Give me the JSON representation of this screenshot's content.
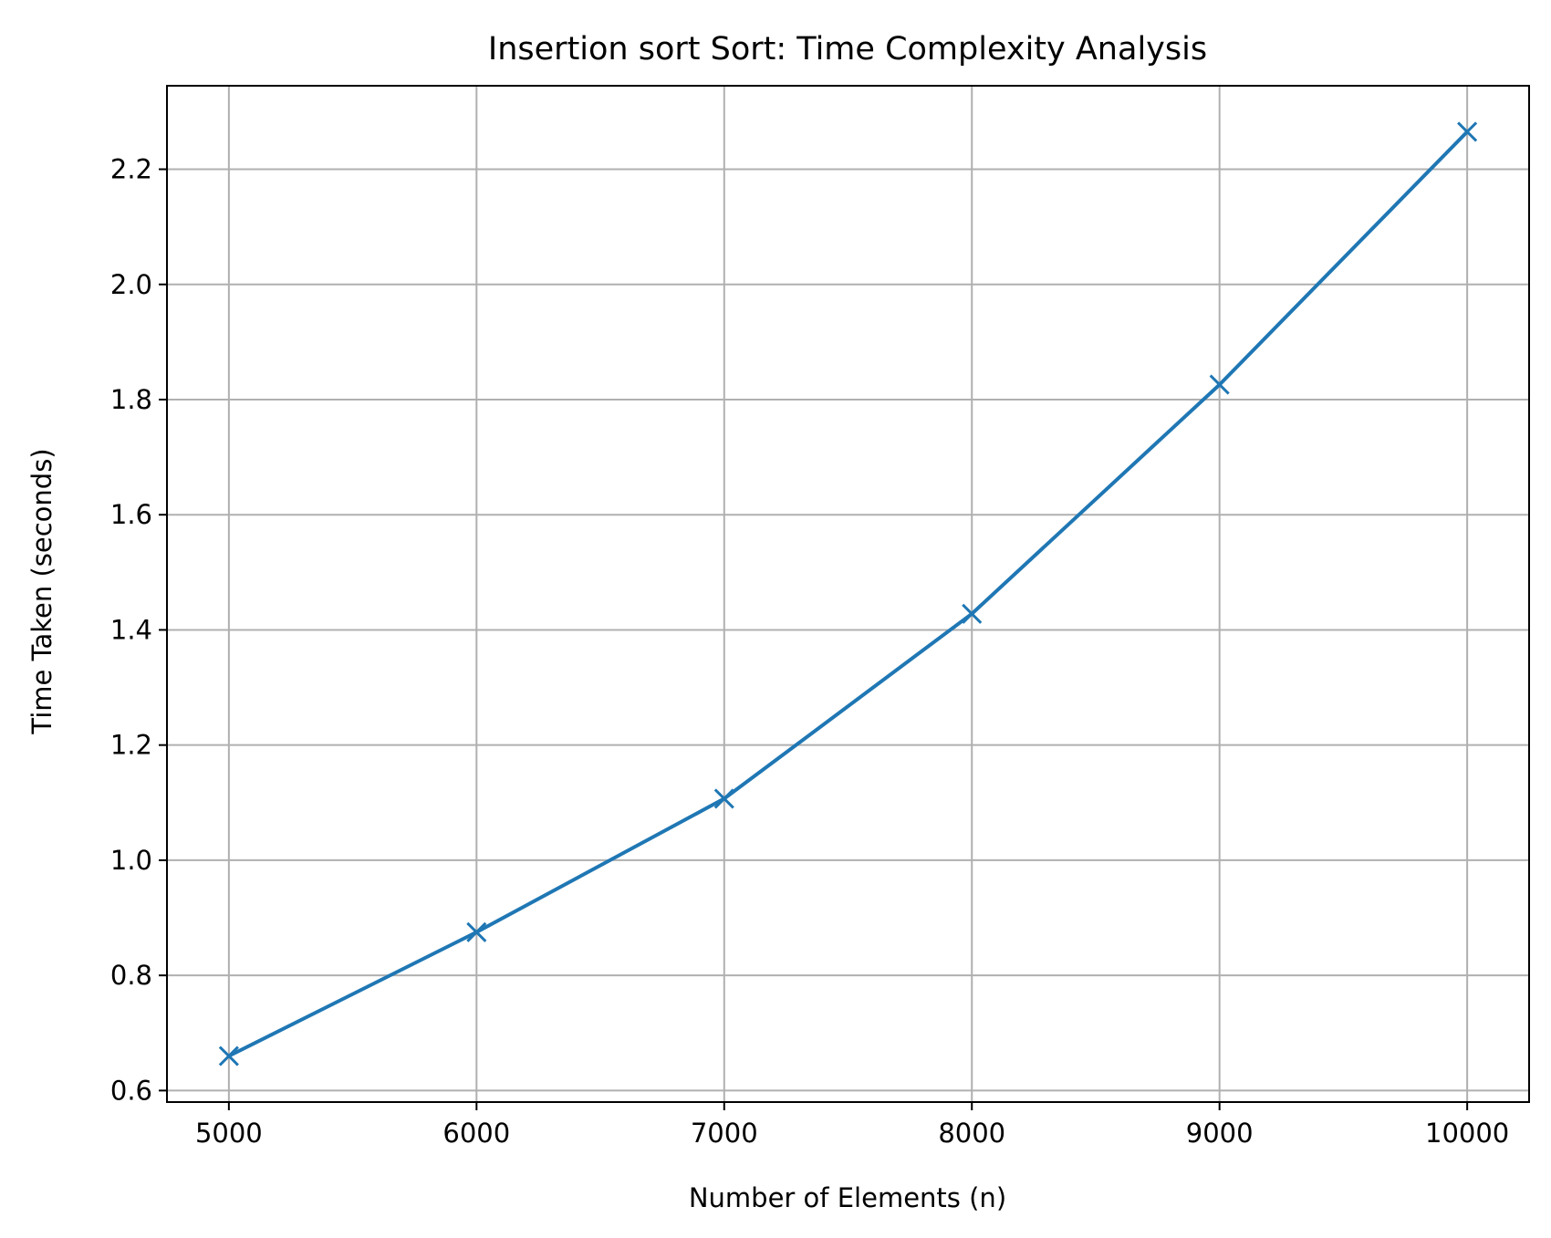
{
  "chart_data": {
    "type": "line",
    "title": "Insertion sort Sort: Time Complexity Analysis",
    "xlabel": "Number of Elements (n)",
    "ylabel": "Time Taken (seconds)",
    "x": [
      5000,
      6000,
      7000,
      8000,
      9000,
      10000
    ],
    "series": [
      {
        "values": [
          0.66,
          0.875,
          1.107,
          1.428,
          1.826,
          2.265
        ],
        "color": "#1f77b4",
        "marker": "x"
      }
    ],
    "xlim": [
      4750,
      10250
    ],
    "ylim": [
      0.58,
      2.345
    ],
    "xticks": [
      5000,
      6000,
      7000,
      8000,
      9000,
      10000
    ],
    "yticks": [
      0.6,
      0.8,
      1.0,
      1.2,
      1.4,
      1.6,
      1.8,
      2.0,
      2.2
    ],
    "ytick_labels": [
      "0.6",
      "0.8",
      "1.0",
      "1.2",
      "1.4",
      "1.6",
      "1.8",
      "2.0",
      "2.2"
    ],
    "grid": true,
    "legend": "none"
  }
}
